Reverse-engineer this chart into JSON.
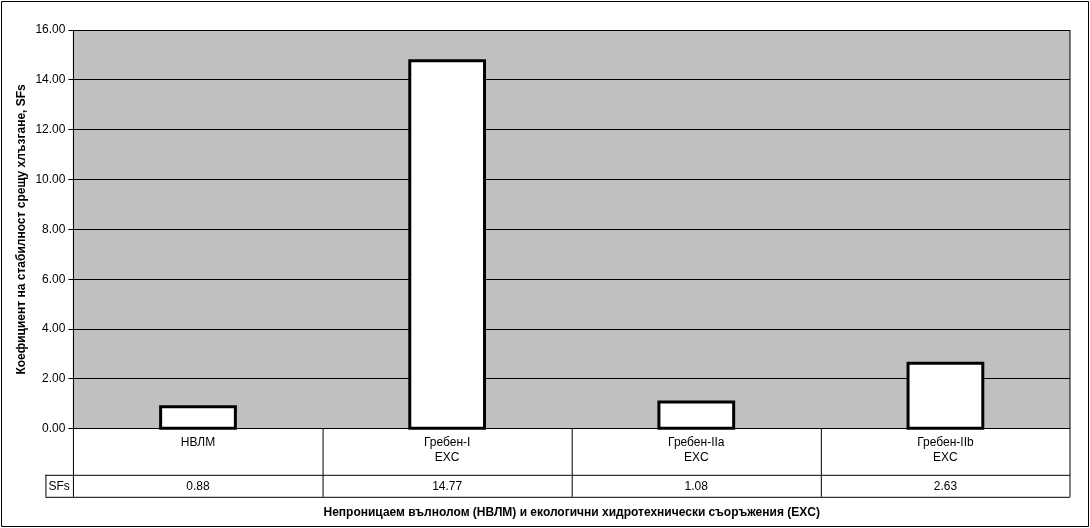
{
  "chart_data": {
    "type": "bar",
    "categories": [
      "НВЛМ",
      "Гребен-I\nEXC",
      "Гребен-IIa\nEXC",
      "Гребен-IIb\nEXC"
    ],
    "series": [
      {
        "name": "SFs",
        "color": "#ffffff",
        "values": [
          0.88,
          14.77,
          1.08,
          2.63
        ]
      }
    ],
    "ylim": [
      0,
      16
    ],
    "yticks": [
      {
        "value": 0,
        "label": "0.00"
      },
      {
        "value": 2,
        "label": "2.00"
      },
      {
        "value": 4,
        "label": "4.00"
      },
      {
        "value": 6,
        "label": "6.00"
      },
      {
        "value": 8,
        "label": "8.00"
      },
      {
        "value": 10,
        "label": "10.00"
      },
      {
        "value": 12,
        "label": "12.00"
      },
      {
        "value": 14,
        "label": "14.00"
      },
      {
        "value": 16,
        "label": "16.00"
      }
    ],
    "ylabel": "Коефициент на стабилност срещу хлъзгане, SFs",
    "xlabel": "Непроницаем вълнолом (НВЛМ) и екологични хидротехнически съоръжения (EXC)",
    "grid": "y",
    "legend": "bottom left",
    "data_labels": true
  }
}
